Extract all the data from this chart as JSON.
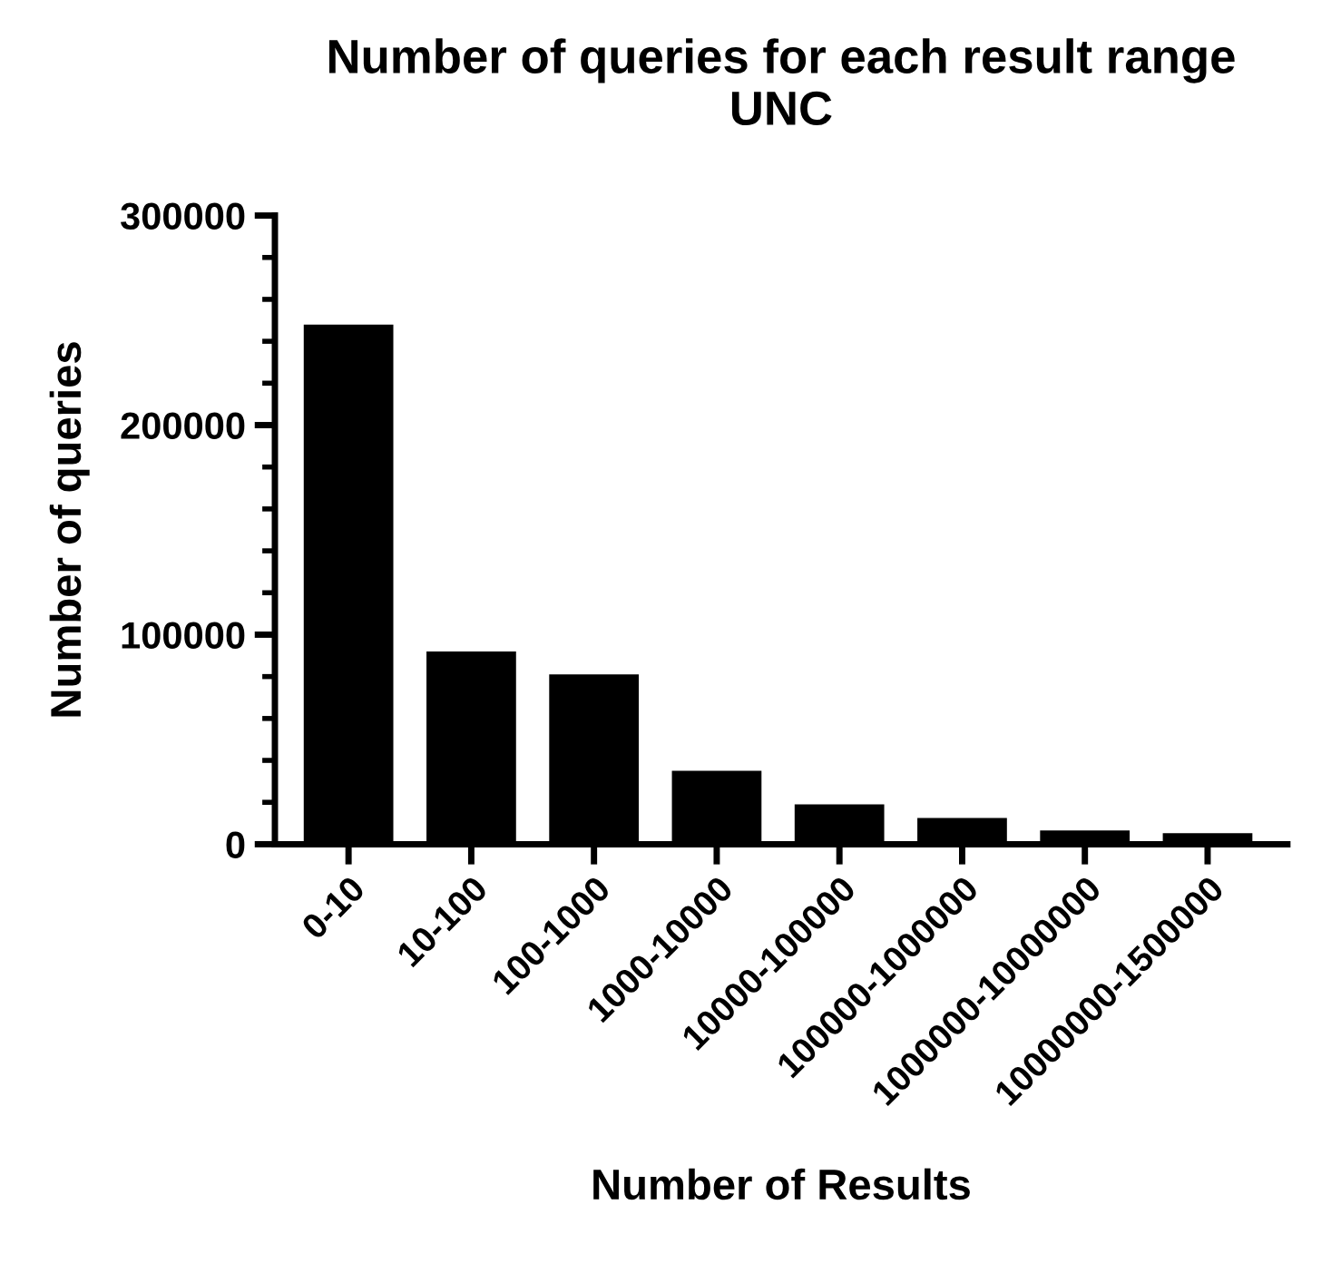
{
  "chart_data": {
    "type": "bar",
    "title": "Number of queries for each result range\nUNC",
    "xlabel": "Number of Results",
    "ylabel": "Number of queries",
    "categories": [
      "0-10",
      "10-100",
      "100-1000",
      "1000-10000",
      "10000-100000",
      "100000-1000000",
      "1000000-10000000",
      "10000000-1500000"
    ],
    "values": [
      248000,
      92000,
      81000,
      35000,
      19000,
      12500,
      6600,
      5300
    ],
    "color": "#000000",
    "ylim": [
      0,
      300000
    ],
    "yticks": [
      0,
      100000,
      200000,
      300000
    ],
    "grid": false
  }
}
